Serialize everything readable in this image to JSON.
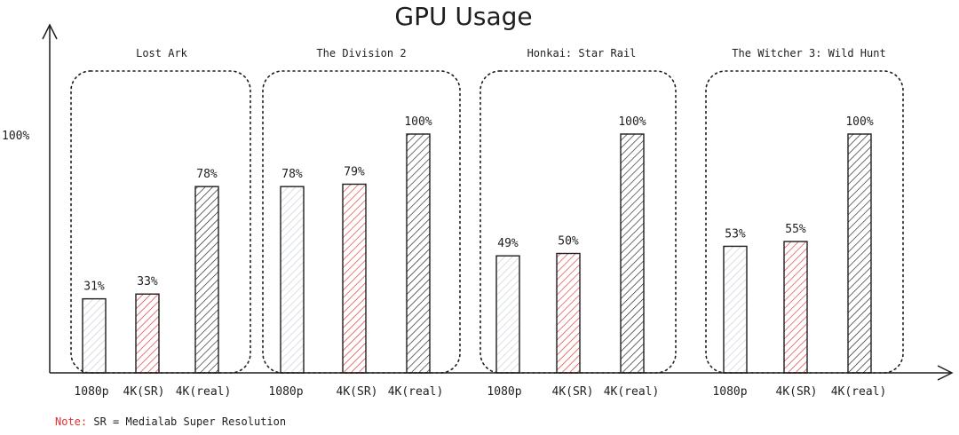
{
  "chart_data": {
    "type": "bar",
    "title": "GPU Usage",
    "xlabel": "",
    "ylabel": "",
    "ylim": [
      0,
      100
    ],
    "yticks": [
      "100%"
    ],
    "categories": [
      "1080p",
      "4K(SR)",
      "4K(real)"
    ],
    "groups": [
      {
        "name": "Lost Ark",
        "values": [
          31,
          33,
          78
        ],
        "labels": [
          "31%",
          "33%",
          "78%"
        ]
      },
      {
        "name": "The Division 2",
        "values": [
          78,
          79,
          100
        ],
        "labels": [
          "78%",
          "79%",
          "100%"
        ]
      },
      {
        "name": "Honkai: Star Rail",
        "values": [
          49,
          50,
          100
        ],
        "labels": [
          "49%",
          "50%",
          "100%"
        ]
      },
      {
        "name": "The Witcher 3: Wild Hunt",
        "values": [
          53,
          55,
          100
        ],
        "labels": [
          "53%",
          "55%",
          "100%"
        ]
      }
    ],
    "series_colors": [
      "#ced4da",
      "#e03131",
      "#1e1e1e"
    ],
    "grid": false,
    "group_boxes": "dashed"
  },
  "note": {
    "label": "Note:",
    "text": "SR = Medialab Super Resolution"
  }
}
